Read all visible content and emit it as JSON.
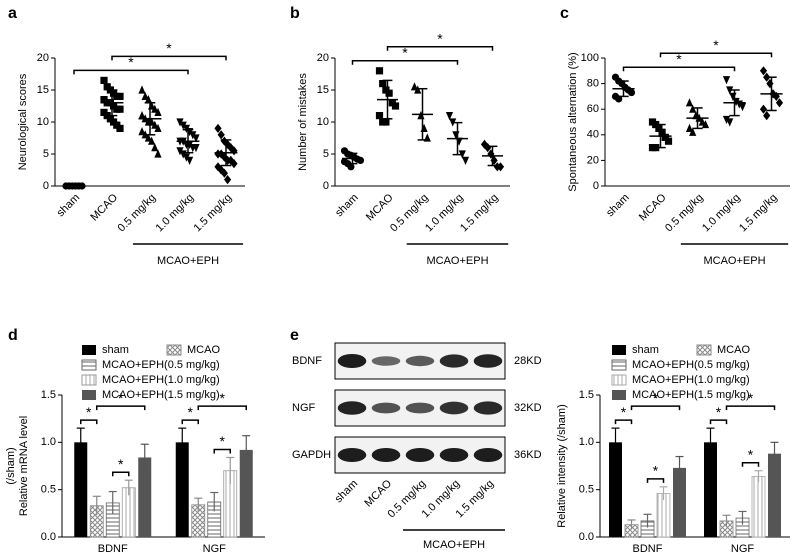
{
  "chart_data": [
    {
      "type": "dot",
      "panel": "a",
      "ylabel": "Neurological scores",
      "categories": [
        "sham",
        "MCAO",
        "0.5 mg/kg",
        "1.0 mg/kg",
        "1.5 mg/kg"
      ],
      "group": {
        "label": "MCAO+EPH",
        "from": 2,
        "to": 4
      },
      "markers": [
        "circle",
        "square",
        "triangle",
        "triangle-down",
        "diamond"
      ],
      "color": "#000000",
      "values": [
        0,
        13,
        10.5,
        7,
        5.2
      ],
      "errors": [
        0,
        2,
        2.5,
        1.8,
        2
      ],
      "points": [
        [
          0,
          0,
          0,
          0,
          0,
          0
        ],
        [
          16.5,
          15.5,
          15,
          14.5,
          14,
          14,
          13.5,
          13,
          13,
          12.5,
          12,
          12,
          11.5,
          11,
          10.5,
          10,
          9.5,
          9
        ],
        [
          15,
          14,
          13.5,
          12.5,
          12,
          11.5,
          11,
          10.5,
          10,
          10,
          9.5,
          9,
          8.5,
          8,
          7.5,
          7,
          6,
          5
        ],
        [
          10,
          9.5,
          9,
          8.5,
          8,
          7.5,
          7,
          7,
          6.5,
          6.5,
          6,
          6,
          5.5,
          5,
          4.5,
          4
        ],
        [
          9,
          8,
          7,
          6.5,
          6,
          5.5,
          5,
          5,
          4.5,
          4,
          4,
          3.5,
          3,
          2.5,
          2,
          1
        ]
      ],
      "ylim": [
        0,
        20
      ],
      "yticks": [
        0,
        5,
        10,
        15,
        20
      ],
      "brackets": [
        {
          "from": 0,
          "to": 3,
          "label": "*"
        },
        {
          "from": 1,
          "to": 4,
          "label": "*"
        }
      ]
    },
    {
      "type": "dot",
      "panel": "b",
      "ylabel": "Number of mistakes",
      "categories": [
        "sham",
        "MCAO",
        "0.5 mg/kg",
        "1.0 mg/kg",
        "1.5 mg/kg"
      ],
      "group": {
        "label": "MCAO+EPH",
        "from": 2,
        "to": 4
      },
      "markers": [
        "circle",
        "square",
        "triangle",
        "triangle-down",
        "diamond"
      ],
      "color": "#000000",
      "values": [
        4.3,
        13.5,
        11.2,
        7.4,
        4.7
      ],
      "errors": [
        0.8,
        3,
        4,
        2.5,
        1.5
      ],
      "points": [
        [
          5.5,
          5,
          4.8,
          4.5,
          4.2,
          4,
          3.8,
          3.5,
          3
        ],
        [
          18,
          16,
          15,
          14.5,
          13,
          12.5,
          11,
          10,
          10
        ],
        [
          15.5,
          15,
          11,
          9,
          7.5
        ],
        [
          11,
          10,
          8,
          7,
          5,
          4
        ],
        [
          6.5,
          6,
          5,
          4,
          3,
          3
        ]
      ],
      "ylim": [
        0,
        20
      ],
      "yticks": [
        0,
        5,
        10,
        15,
        20
      ],
      "brackets": [
        {
          "from": 0,
          "to": 3,
          "label": "*"
        },
        {
          "from": 1,
          "to": 4,
          "label": "*"
        }
      ]
    },
    {
      "type": "dot",
      "panel": "c",
      "ylabel": "Spontaneous alternation (%)",
      "categories": [
        "sham",
        "MCAO",
        "0.5 mg/kg",
        "1.0 mg/kg",
        "1.5 mg/kg"
      ],
      "group": {
        "label": "MCAO+EPH",
        "from": 2,
        "to": 4
      },
      "markers": [
        "circle",
        "square",
        "triangle",
        "triangle-down",
        "diamond"
      ],
      "color": "#000000",
      "values": [
        76,
        39,
        53,
        65,
        72
      ],
      "errors": [
        6,
        9,
        8,
        10,
        13
      ],
      "points": [
        [
          85,
          82,
          80,
          77,
          75,
          73,
          70,
          68
        ],
        [
          50,
          48,
          45,
          42,
          38,
          35,
          30,
          30
        ],
        [
          65,
          60,
          55,
          53,
          50,
          48,
          45,
          42
        ],
        [
          83,
          75,
          70,
          66,
          64,
          62,
          52,
          50
        ],
        [
          90,
          85,
          80,
          72,
          70,
          65,
          60,
          55
        ]
      ],
      "ylim": [
        0,
        100
      ],
      "yticks": [
        0,
        20,
        40,
        60,
        80,
        100
      ],
      "brackets": [
        {
          "from": 0,
          "to": 3,
          "label": "*"
        },
        {
          "from": 1,
          "to": 4,
          "label": "*"
        }
      ]
    },
    {
      "type": "bar",
      "panel": "d",
      "ylabel": [
        "Relative mRNA level",
        "(/sham)"
      ],
      "categories": [
        "BDNF",
        "NGF"
      ],
      "legend": "top",
      "series": [
        {
          "name": "sham",
          "color": "#000000",
          "pattern": "solid",
          "values": [
            1.0,
            1.0
          ],
          "errors": [
            0.15,
            0.15
          ]
        },
        {
          "name": "MCAO",
          "color": "#888888",
          "pattern": "crosshatch",
          "values": [
            0.33,
            0.34
          ],
          "errors": [
            0.1,
            0.07
          ]
        },
        {
          "name": "MCAO+EPH(0.5 mg/kg)",
          "color": "#666666",
          "pattern": "horizontal",
          "values": [
            0.36,
            0.37
          ],
          "errors": [
            0.12,
            0.1
          ]
        },
        {
          "name": "MCAO+EPH(1.0 mg/kg)",
          "color": "#999999",
          "pattern": "vertical",
          "values": [
            0.52,
            0.7
          ],
          "errors": [
            0.08,
            0.14
          ]
        },
        {
          "name": "MCAO+EPH(1.5 mg/kg)",
          "color": "#555555",
          "pattern": "solid",
          "values": [
            0.84,
            0.92
          ],
          "errors": [
            0.14,
            0.15
          ]
        }
      ],
      "ylim": [
        0,
        1.5
      ],
      "yticks": [
        {
          "value": 0,
          "label": "0.0"
        },
        {
          "value": 0.5,
          "label": "0.5"
        },
        {
          "value": 1,
          "label": "1.0"
        },
        {
          "value": 1.5,
          "label": "1.5"
        }
      ],
      "brackets": [
        {
          "category": 0,
          "from": 0,
          "to": 1,
          "label": "*"
        },
        {
          "category": 0,
          "from": 2,
          "to": 3,
          "label": "*"
        },
        {
          "category": 0,
          "from": 1,
          "to": 4,
          "label": "*"
        },
        {
          "category": 1,
          "from": 0,
          "to": 1,
          "label": "*"
        },
        {
          "category": 1,
          "from": 2,
          "to": 3,
          "label": "*"
        },
        {
          "category": 1,
          "from": 1,
          "to": 4,
          "label": "*"
        }
      ]
    },
    {
      "type": "bar",
      "ylabel": [
        "Relative intensity (/sham)"
      ],
      "categories": [
        "BDNF",
        "NGF"
      ],
      "legend": "top",
      "series": [
        {
          "name": "sham",
          "color": "#000000",
          "pattern": "solid",
          "values": [
            1.0,
            1.0
          ],
          "errors": [
            0.15,
            0.15
          ]
        },
        {
          "name": "MCAO",
          "color": "#888888",
          "pattern": "crosshatch",
          "values": [
            0.13,
            0.17
          ],
          "errors": [
            0.05,
            0.06
          ]
        },
        {
          "name": "MCAO+EPH(0.5 mg/kg)",
          "color": "#666666",
          "pattern": "horizontal",
          "values": [
            0.17,
            0.2
          ],
          "errors": [
            0.07,
            0.07
          ]
        },
        {
          "name": "MCAO+EPH(1.0 mg/kg)",
          "color": "#aaaaaa",
          "pattern": "vertical",
          "values": [
            0.46,
            0.64
          ],
          "errors": [
            0.07,
            0.06
          ]
        },
        {
          "name": "MCAO+EPH(1.5 mg/kg)",
          "color": "#555555",
          "pattern": "solid",
          "values": [
            0.73,
            0.88
          ],
          "errors": [
            0.12,
            0.12
          ]
        }
      ],
      "ylim": [
        0,
        1.5
      ],
      "yticks": [
        {
          "value": 0,
          "label": "0.0"
        },
        {
          "value": 0.5,
          "label": "0.5"
        },
        {
          "value": 1,
          "label": "1.0"
        },
        {
          "value": 1.5,
          "label": "1.5"
        }
      ],
      "brackets": [
        {
          "category": 0,
          "from": 0,
          "to": 1,
          "label": "*"
        },
        {
          "category": 0,
          "from": 2,
          "to": 3,
          "label": "*"
        },
        {
          "category": 0,
          "from": 1,
          "to": 4,
          "label": "*"
        },
        {
          "category": 1,
          "from": 0,
          "to": 1,
          "label": "*"
        },
        {
          "category": 1,
          "from": 2,
          "to": 3,
          "label": "*"
        },
        {
          "category": 1,
          "from": 1,
          "to": 4,
          "label": "*"
        }
      ]
    }
  ],
  "blot": {
    "panel": "e",
    "rows": [
      {
        "label": "BDNF",
        "size": "28KD"
      },
      {
        "label": "NGF",
        "size": "32KD"
      },
      {
        "label": "GAPDH",
        "size": "36KD"
      }
    ],
    "lanes": [
      "sham",
      "MCAO",
      "0.5 mg/kg",
      "1.0 mg/kg",
      "1.5 mg/kg"
    ],
    "group_label": "MCAO+EPH"
  }
}
